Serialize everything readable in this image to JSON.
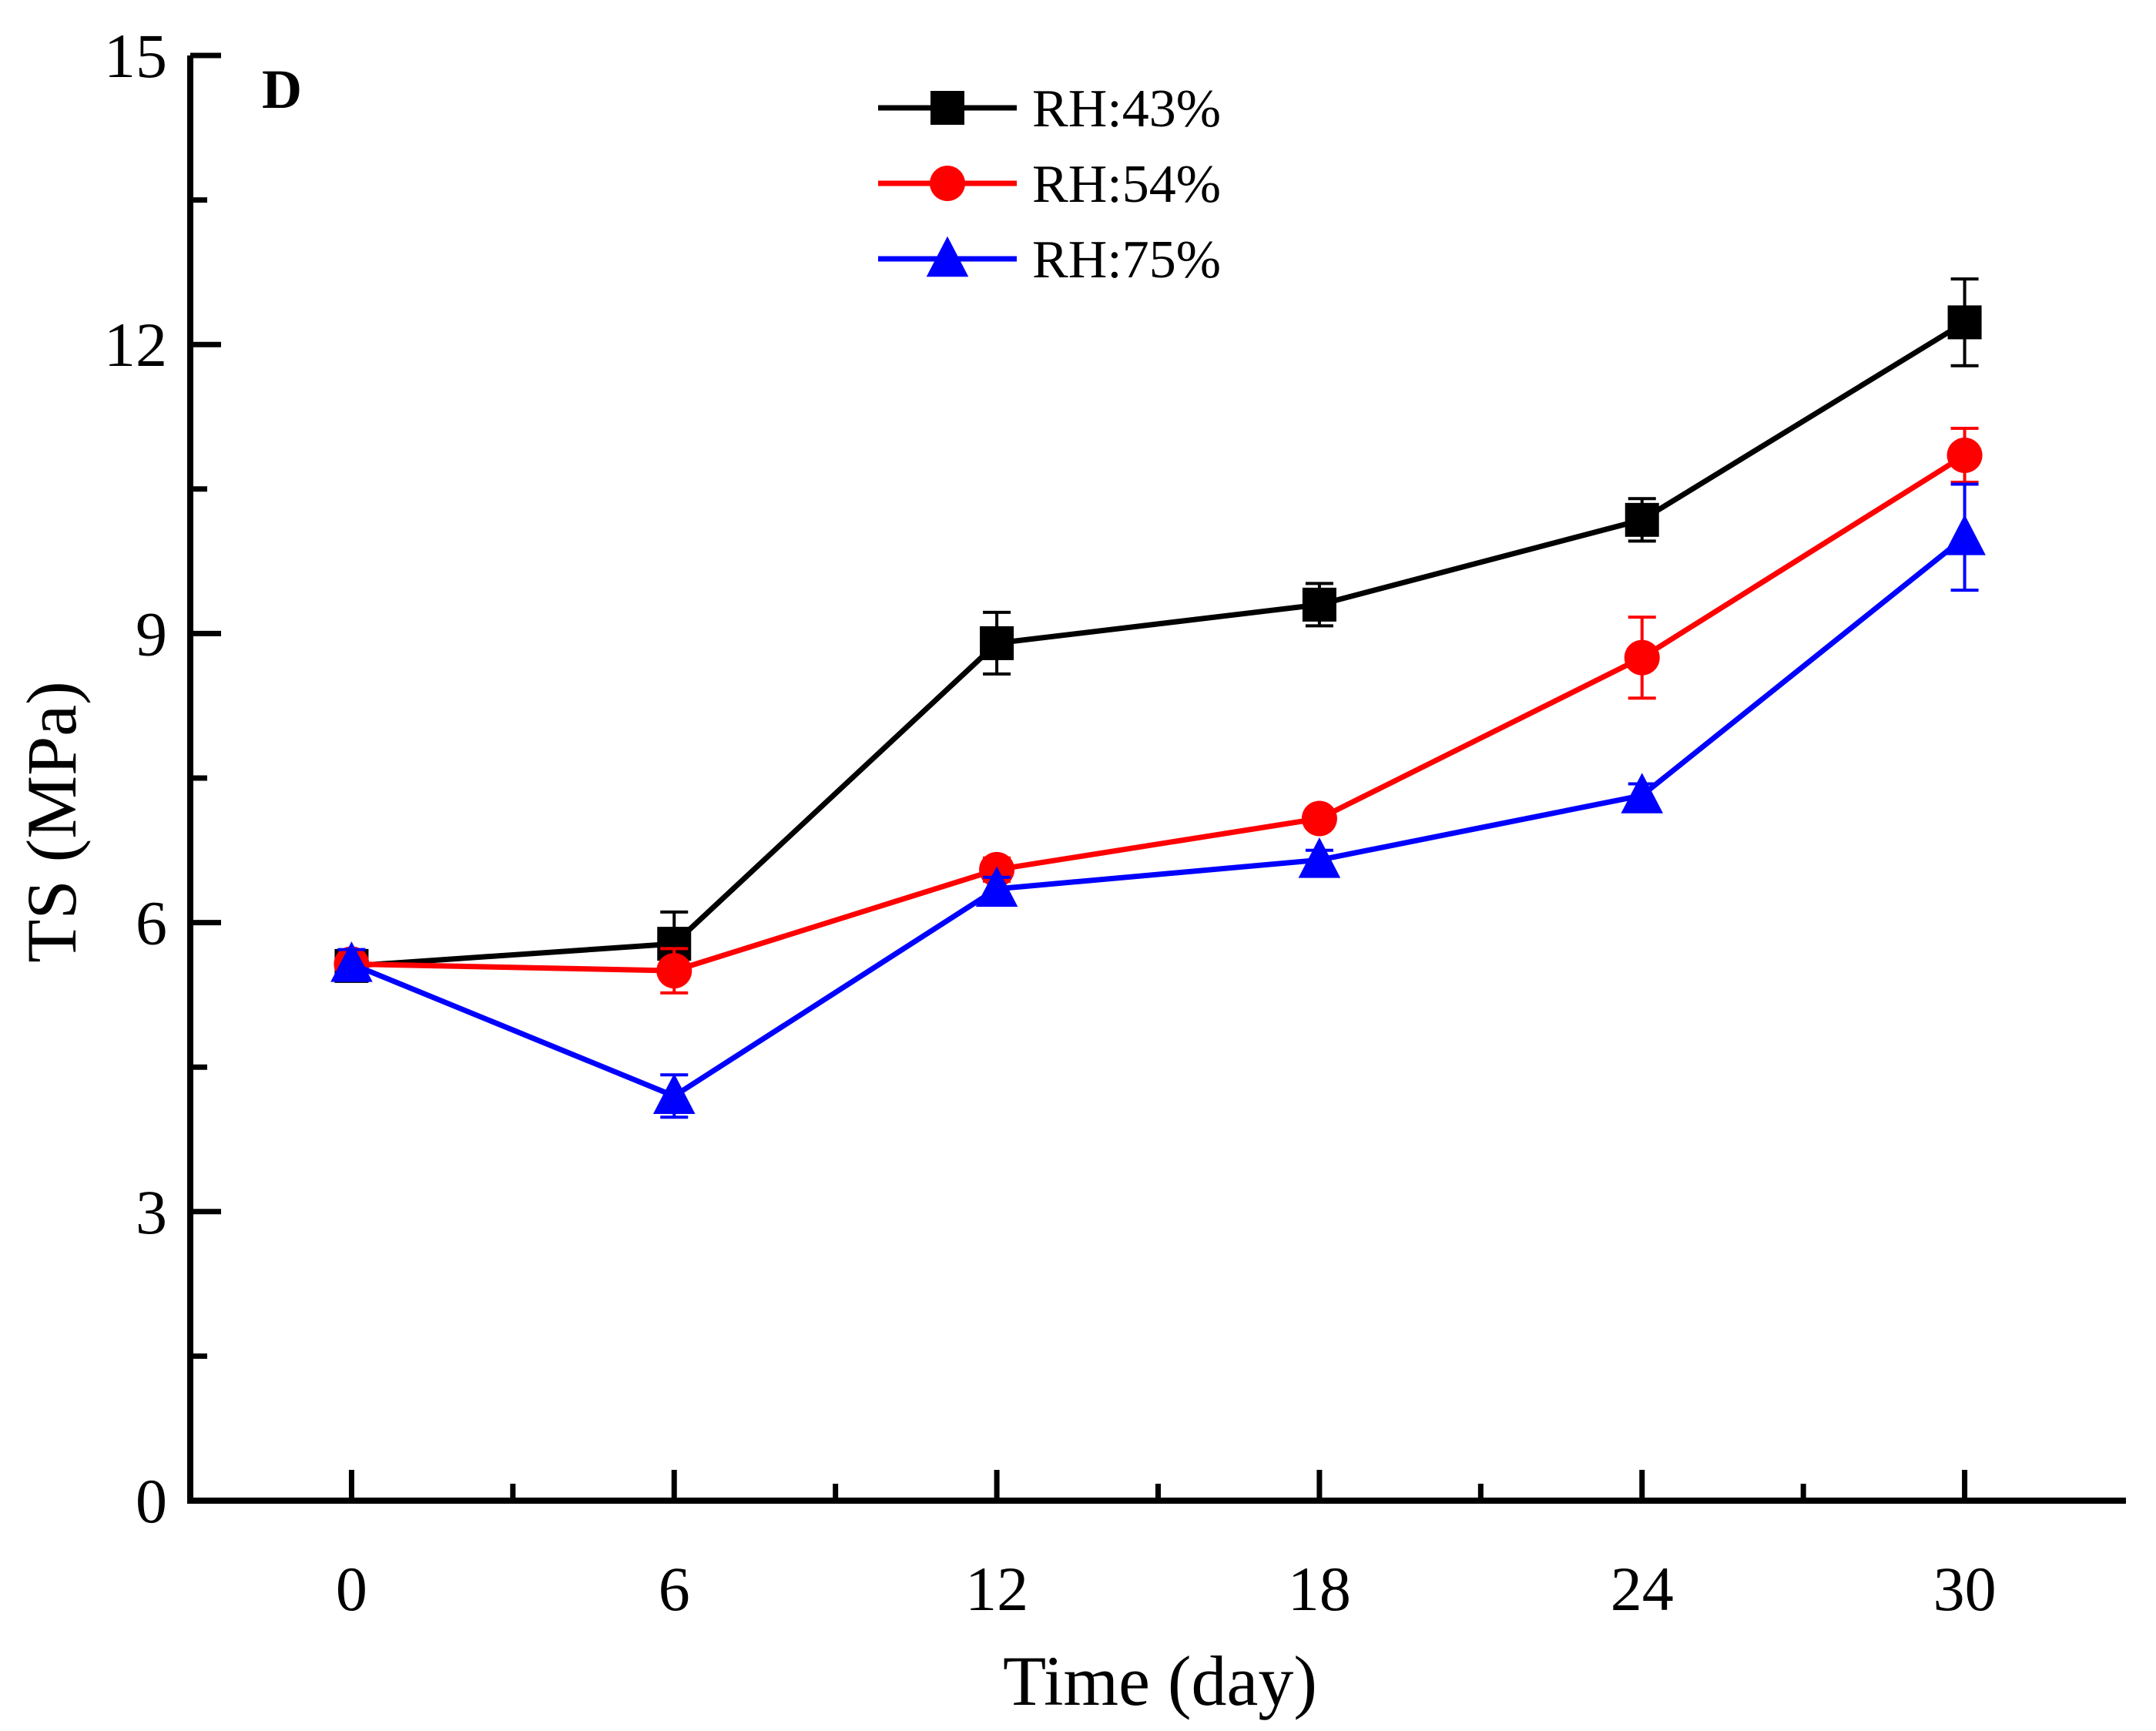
{
  "chart_data": {
    "type": "line",
    "panel_label": "D",
    "title": "",
    "xlabel": "Time (day)",
    "ylabel": "TS (MPa)",
    "x": [
      0,
      6,
      12,
      18,
      24,
      30
    ],
    "x_ticks": [
      "0",
      "6",
      "12",
      "18",
      "24",
      "30"
    ],
    "xlim": [
      -3,
      33
    ],
    "ylim": [
      0,
      15
    ],
    "y_ticks": [
      "0",
      "3",
      "6",
      "9",
      "12",
      "15"
    ],
    "grid": false,
    "legend_position": "top-center",
    "series": [
      {
        "name": "RH:43%",
        "color": "#000000",
        "marker": "square",
        "values": [
          5.55,
          5.78,
          8.9,
          9.3,
          10.18,
          12.23
        ],
        "errors": [
          0.1,
          0.33,
          0.32,
          0.22,
          0.22,
          0.45
        ]
      },
      {
        "name": "RH:54%",
        "color": "#ff0000",
        "marker": "circle",
        "values": [
          5.57,
          5.5,
          6.55,
          7.08,
          8.75,
          10.85
        ],
        "errors": [
          0.1,
          0.23,
          0.12,
          0.1,
          0.42,
          0.28
        ]
      },
      {
        "name": "RH:75%",
        "color": "#0000ff",
        "marker": "triangle",
        "values": [
          5.57,
          4.2,
          6.35,
          6.65,
          7.32,
          10.0
        ],
        "errors": [
          0.15,
          0.22,
          0.12,
          0.1,
          0.12,
          0.55
        ]
      }
    ]
  }
}
